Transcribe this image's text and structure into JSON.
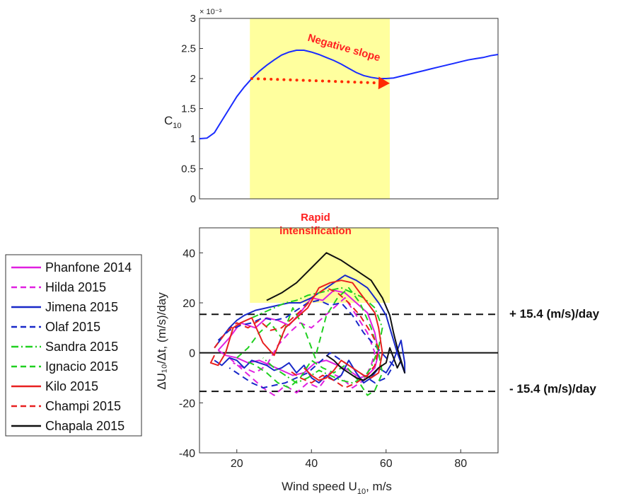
{
  "chart_data": [
    {
      "type": "line",
      "panel": "top",
      "ylabel_base": "C",
      "ylabel_sub": "10",
      "exponent_label": "× 10⁻³",
      "xlim": [
        10,
        90
      ],
      "ylim": [
        0,
        3
      ],
      "yticks": [
        "0",
        "0.5",
        "1",
        "1.5",
        "2",
        "2.5",
        "3"
      ],
      "grid": false,
      "series": [
        {
          "color": "#1a2cff",
          "x": [
            10,
            12,
            14,
            16,
            18,
            20,
            22,
            24,
            26,
            28,
            30,
            32,
            34,
            36,
            38,
            40,
            42,
            44,
            46,
            48,
            50,
            52,
            54,
            56,
            58,
            60,
            62,
            64,
            66,
            68,
            70,
            72,
            74,
            76,
            78,
            80,
            82,
            84,
            86,
            88,
            90
          ],
          "y": [
            1.0,
            1.01,
            1.1,
            1.3,
            1.5,
            1.7,
            1.86,
            2.0,
            2.12,
            2.22,
            2.31,
            2.39,
            2.44,
            2.47,
            2.47,
            2.44,
            2.4,
            2.35,
            2.3,
            2.24,
            2.17,
            2.1,
            2.05,
            2.02,
            2.0,
            2.0,
            2.01,
            2.04,
            2.07,
            2.1,
            2.13,
            2.16,
            2.19,
            2.22,
            2.25,
            2.28,
            2.31,
            2.33,
            2.35,
            2.38,
            2.4
          ]
        }
      ],
      "annotation": {
        "text": "Negative slope",
        "arrow_from": [
          24,
          2.0
        ],
        "arrow_to": [
          61,
          1.92
        ]
      }
    },
    {
      "type": "line",
      "panel": "bottom",
      "xlabel_base": "Wind speed U",
      "xlabel_sub": "10",
      "xlabel_tail": ", m/s",
      "ylabel_text": "ΔU₁₀/Δt, (m/s)/day",
      "xlim": [
        10,
        90
      ],
      "ylim": [
        -40,
        50
      ],
      "xticks": [
        "20",
        "40",
        "60",
        "80"
      ],
      "yticks": [
        "-40",
        "-20",
        "0",
        "20",
        "40"
      ],
      "legend_position": "left",
      "highlight_band": {
        "x": [
          23.5,
          61
        ],
        "color": "#ffff9e",
        "label": "Rapid\nintensification"
      },
      "thresholds": [
        {
          "y": 15.4,
          "label": "+ 15.4 (m/s)/day"
        },
        {
          "y": -15.4,
          "label": "- 15.4 (m/s)/day"
        }
      ],
      "series": [
        {
          "name": "Phanfone 2014",
          "color": "#e020e0",
          "dash": "solid",
          "x": [
            15,
            18,
            21,
            25,
            28,
            31,
            34,
            37,
            40,
            43,
            46,
            49,
            52,
            55,
            57,
            58,
            57,
            55,
            53,
            50,
            47,
            44,
            41,
            38,
            35,
            32,
            29,
            26,
            23,
            20,
            17,
            15
          ],
          "y": [
            1,
            6,
            12,
            10,
            14,
            13,
            11,
            16,
            22,
            21,
            25,
            24,
            20,
            16,
            8,
            0,
            -6,
            -9,
            -10,
            -7,
            -5,
            -3,
            -4,
            -8,
            -9,
            -7,
            -5,
            -3,
            -4,
            -2,
            -1,
            1
          ]
        },
        {
          "name": "Hilda 2015",
          "color": "#e020e0",
          "dash": "dashed",
          "x": [
            18,
            21,
            24,
            27,
            30,
            33,
            36,
            39,
            42,
            45,
            48,
            51,
            54,
            56,
            57,
            55,
            52,
            49,
            46,
            43,
            40,
            37,
            34,
            31,
            28,
            25,
            22,
            19
          ],
          "y": [
            -2,
            -6,
            -10,
            -14,
            -17,
            -13,
            -16,
            -12,
            -14,
            -8,
            -10,
            -14,
            -11,
            -5,
            0,
            8,
            15,
            22,
            18,
            14,
            10,
            12,
            8,
            3,
            -5,
            -8,
            -6,
            -4
          ]
        },
        {
          "name": "Jimena 2015",
          "color": "#1828c8",
          "dash": "solid",
          "x": [
            14,
            16,
            18,
            20,
            22,
            25,
            28,
            31,
            34,
            37,
            40,
            43,
            46,
            49,
            52,
            55,
            58,
            60,
            61,
            62,
            63,
            64,
            65,
            65,
            64,
            62,
            60,
            58,
            56,
            54,
            52,
            50,
            48,
            46,
            44,
            42,
            40,
            38,
            36,
            34,
            32,
            30,
            28,
            26,
            24,
            22,
            20,
            18,
            16,
            14
          ],
          "y": [
            2,
            6,
            10,
            13,
            15,
            17,
            18,
            19,
            20,
            20,
            22,
            25,
            28,
            31,
            29,
            26,
            20,
            15,
            10,
            5,
            0,
            -4,
            -8,
            -4,
            5,
            -3,
            -8,
            -6,
            -10,
            -12,
            -8,
            -3,
            -9,
            -11,
            -9,
            -12,
            -10,
            -5,
            -8,
            -4,
            -6,
            -7,
            -5,
            -4,
            -3,
            -6,
            -3,
            -2,
            -5,
            -3
          ]
        },
        {
          "name": "Olaf 2015",
          "color": "#1828c8",
          "dash": "dashed",
          "x": [
            15,
            18,
            21,
            24,
            27,
            30,
            33,
            36,
            39,
            42,
            45,
            48,
            51,
            54,
            57,
            60,
            62,
            60,
            57,
            54,
            51,
            48,
            45,
            42,
            39,
            36,
            33,
            30,
            27,
            24,
            21,
            18
          ],
          "y": [
            5,
            9,
            11,
            12,
            14,
            13,
            14,
            17,
            20,
            21,
            19,
            20,
            15,
            8,
            3,
            -2,
            -5,
            -10,
            -12,
            -9,
            -6,
            -3,
            0,
            -4,
            -8,
            -10,
            -12,
            -13,
            -14,
            -12,
            -9,
            -6
          ]
        },
        {
          "name": "Sandra 2015",
          "color": "#20d020",
          "dash": "dashdot",
          "x": [
            24,
            27,
            30,
            33,
            36,
            39,
            42,
            45,
            48,
            51,
            54,
            57,
            59,
            58,
            56,
            54,
            51,
            48,
            45,
            42,
            39,
            36,
            33,
            30,
            27
          ],
          "y": [
            14,
            16,
            18,
            20,
            21,
            23,
            24,
            25,
            26,
            24,
            22,
            18,
            10,
            2,
            -6,
            -10,
            -12,
            -11,
            -9,
            -7,
            -10,
            -12,
            -9,
            -6,
            -2
          ]
        },
        {
          "name": "Ignacio 2015",
          "color": "#20d020",
          "dash": "dashed",
          "x": [
            20,
            23,
            26,
            29,
            32,
            35,
            38,
            41,
            44,
            47,
            50,
            53,
            56,
            58,
            59,
            57,
            55,
            52,
            49,
            46,
            43,
            40,
            37,
            34,
            31,
            28,
            25,
            22
          ],
          "y": [
            -2,
            2,
            8,
            12,
            6,
            18,
            10,
            -2,
            15,
            22,
            26,
            20,
            10,
            0,
            -8,
            -15,
            -17,
            -10,
            -5,
            -8,
            -6,
            -3,
            -10,
            -14,
            -12,
            -8,
            -5,
            -3
          ]
        },
        {
          "name": "Kilo 2015",
          "color": "#e82020",
          "dash": "solid",
          "x": [
            14,
            13,
            15,
            17,
            19,
            21,
            24,
            27,
            30,
            33,
            36,
            39,
            42,
            45,
            48,
            51,
            53,
            55,
            57,
            58,
            59,
            58,
            56,
            54,
            52,
            50,
            48,
            46,
            44,
            42,
            40,
            38
          ],
          "y": [
            -1,
            -4,
            -5,
            0,
            10,
            12,
            14,
            4,
            -1,
            10,
            14,
            18,
            26,
            28,
            29,
            28,
            24,
            20,
            16,
            10,
            0,
            -8,
            -10,
            -9,
            -7,
            -5,
            -3,
            -7,
            -10,
            -11,
            -9,
            -6
          ]
        },
        {
          "name": "Champi 2015",
          "color": "#e82020",
          "dash": "dashed",
          "x": [
            14,
            17,
            20,
            23,
            26,
            29,
            32,
            35,
            38,
            41,
            44,
            47,
            50,
            53,
            56,
            58,
            57,
            55,
            52,
            49,
            46,
            43,
            40,
            37,
            34
          ],
          "y": [
            2,
            8,
            12,
            10,
            13,
            9,
            10,
            14,
            18,
            23,
            26,
            24,
            20,
            15,
            8,
            2,
            -5,
            -9,
            -12,
            -14,
            -11,
            -9,
            -12,
            -10,
            -7
          ]
        },
        {
          "name": "Chapala 2015",
          "color": "#101010",
          "dash": "solid",
          "x": [
            28,
            32,
            36,
            40,
            44,
            48,
            52,
            56,
            59,
            61,
            62,
            63,
            64,
            65,
            64,
            63,
            62,
            61,
            60,
            58,
            56,
            54,
            52,
            50,
            48,
            46,
            44
          ],
          "y": [
            21,
            24,
            28,
            34,
            40,
            37,
            33,
            29,
            22,
            15,
            8,
            2,
            -3,
            -8,
            -3,
            -6,
            -2,
            2,
            -4,
            -6,
            -9,
            -11,
            -10,
            -8,
            -6,
            -3,
            -1
          ]
        }
      ]
    }
  ],
  "labels": {
    "negative_slope": "Negative slope",
    "rapid_1": "Rapid",
    "rapid_2": "intensification",
    "plus_threshold": "+ 15.4 (m/s)/day",
    "minus_threshold": "- 15.4 (m/s)/day"
  },
  "legend": [
    {
      "label": "Phanfone 2014",
      "color": "#e020e0",
      "dash": "solid"
    },
    {
      "label": "Hilda 2015",
      "color": "#e020e0",
      "dash": "dashed"
    },
    {
      "label": "Jimena 2015",
      "color": "#1828c8",
      "dash": "solid"
    },
    {
      "label": "Olaf 2015",
      "color": "#1828c8",
      "dash": "dashed"
    },
    {
      "label": "Sandra 2015",
      "color": "#20d020",
      "dash": "dashdot"
    },
    {
      "label": "Ignacio 2015",
      "color": "#20d020",
      "dash": "dashed"
    },
    {
      "label": "Kilo 2015",
      "color": "#e82020",
      "dash": "solid"
    },
    {
      "label": "Champi 2015",
      "color": "#e82020",
      "dash": "dashed"
    },
    {
      "label": "Chapala 2015",
      "color": "#101010",
      "dash": "solid"
    }
  ]
}
